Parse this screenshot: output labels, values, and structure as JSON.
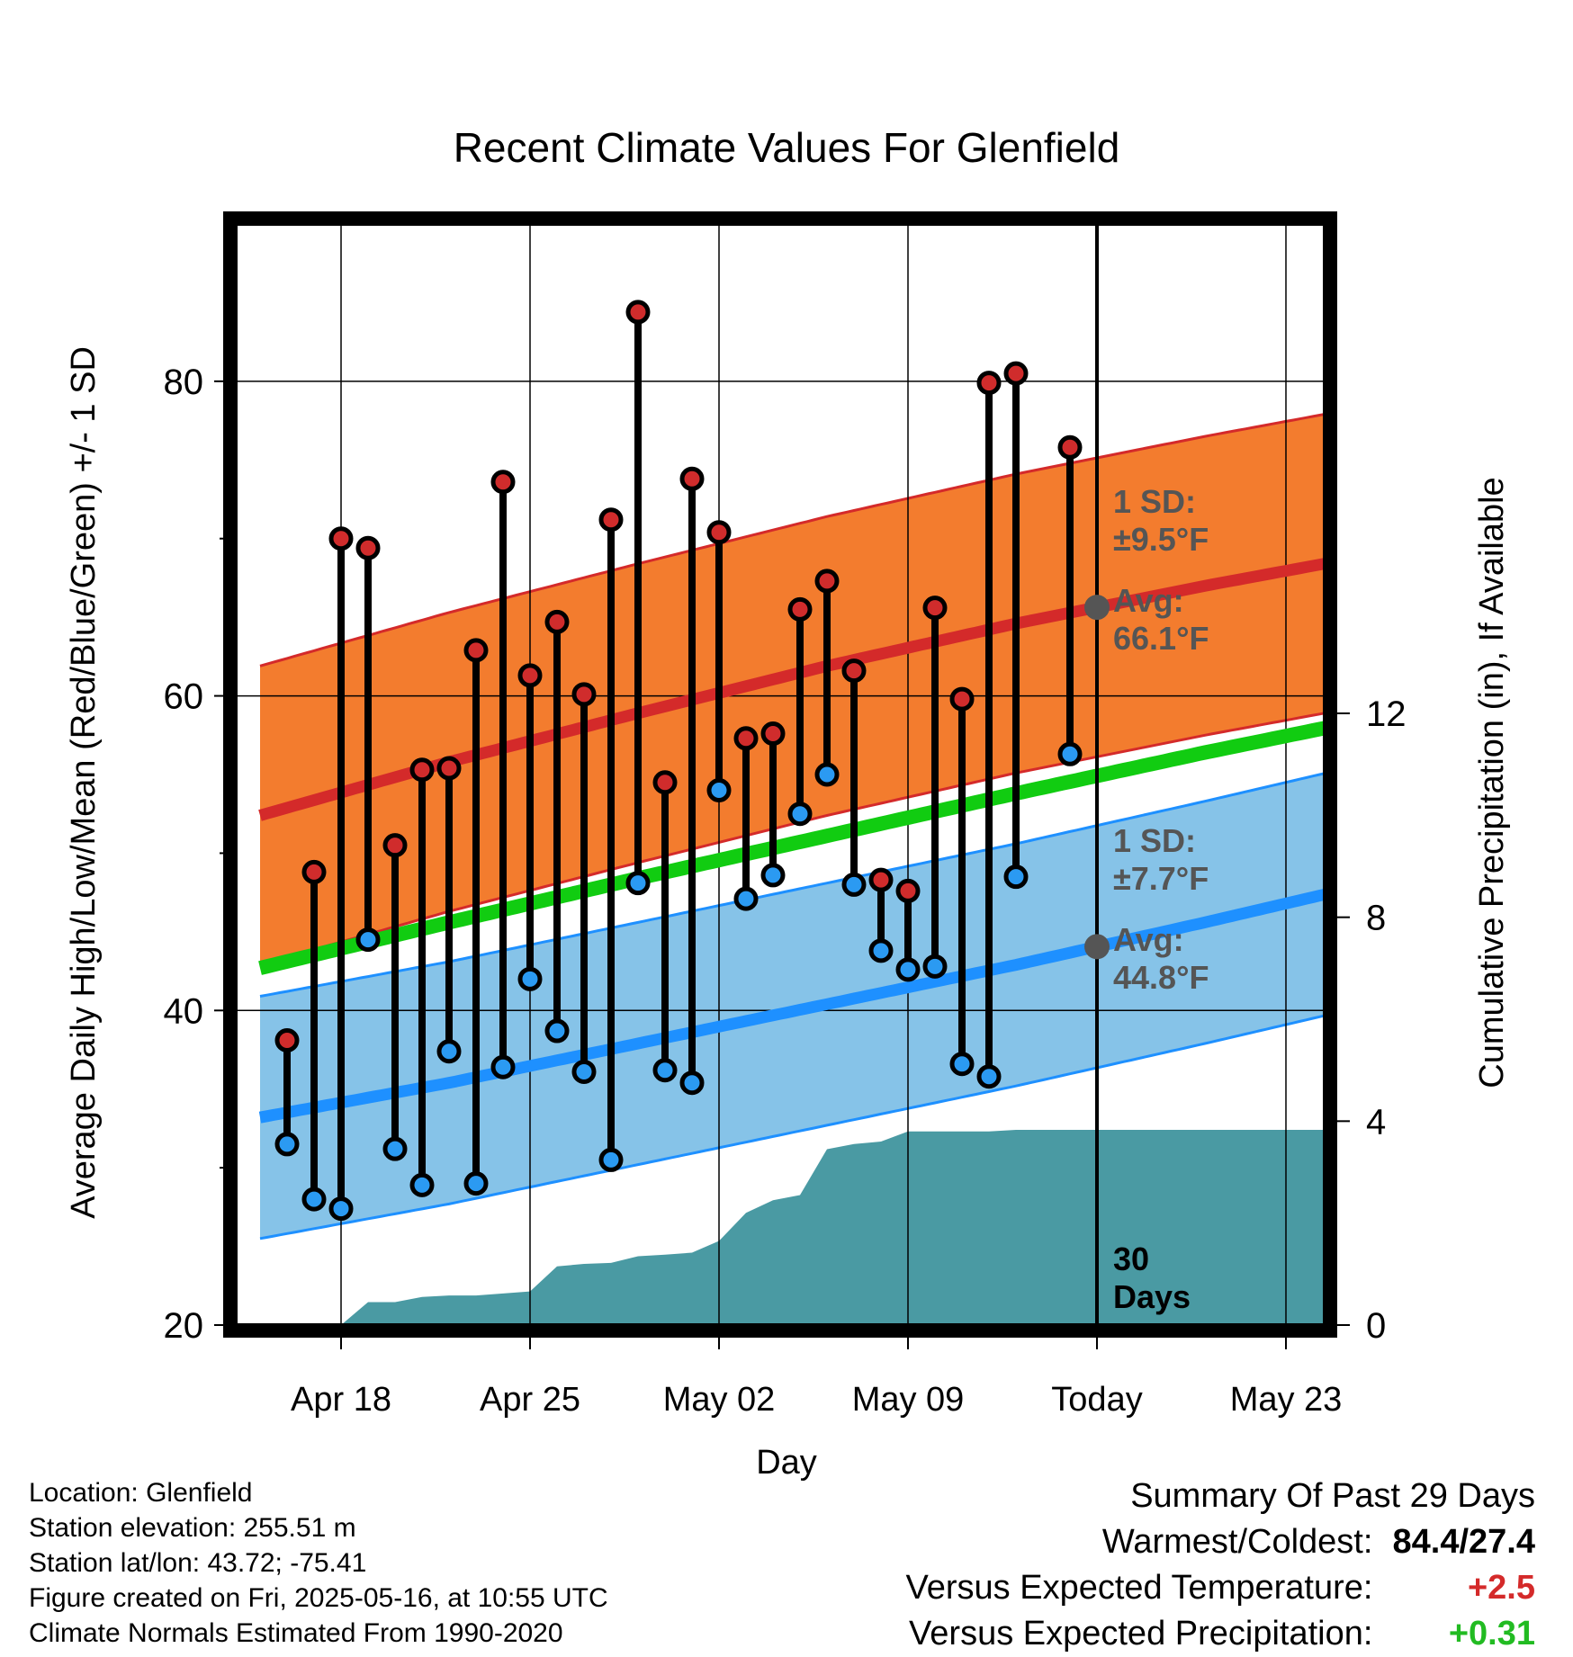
{
  "chart_data": {
    "type": "line",
    "title": "Recent Climate Values For Glenfield",
    "xlabel": "Day",
    "ylabel": "Average Daily High/Low/Mean (Red/Blue/Green) +/- 1 SD",
    "y2label": "Cumulative Precipitation (in), If Available",
    "ylim": [
      20,
      90
    ],
    "y2lim": [
      0,
      21.6
    ],
    "xlim": [
      "2025-04-15",
      "2025-05-26"
    ],
    "x_tick_dates": [
      "2025-04-18",
      "2025-04-25",
      "2025-05-02",
      "2025-05-09",
      "2025-05-16",
      "2025-05-23"
    ],
    "x_tick_labels": [
      "Apr 18",
      "Apr 25",
      "May 02",
      "May 09",
      "Today",
      "May 23"
    ],
    "y_ticks": [
      20,
      40,
      60,
      80
    ],
    "y2_ticks": [
      0,
      4,
      8,
      12
    ],
    "grid": true,
    "today": "2025-05-16",
    "normals": {
      "dates": [
        "2025-04-15",
        "2025-04-22",
        "2025-04-29",
        "2025-05-06",
        "2025-05-13",
        "2025-05-20",
        "2025-05-26"
      ],
      "high_avg": [
        52.4,
        55.8,
        58.9,
        61.9,
        64.6,
        67.0,
        68.9
      ],
      "high_sd": 9.5,
      "low_avg": [
        33.2,
        35.4,
        37.9,
        40.4,
        42.9,
        45.6,
        48.0
      ],
      "low_sd": 7.7,
      "mean_avg": [
        42.7,
        45.6,
        48.4,
        51.1,
        53.8,
        56.4,
        58.5
      ]
    },
    "series": [
      {
        "name": "High",
        "x": [
          "2025-04-16",
          "2025-04-17",
          "2025-04-18",
          "2025-04-19",
          "2025-04-20",
          "2025-04-21",
          "2025-04-22",
          "2025-04-23",
          "2025-04-24",
          "2025-04-25",
          "2025-04-26",
          "2025-04-27",
          "2025-04-28",
          "2025-04-29",
          "2025-04-30",
          "2025-05-01",
          "2025-05-02",
          "2025-05-03",
          "2025-05-04",
          "2025-05-05",
          "2025-05-06",
          "2025-05-07",
          "2025-05-08",
          "2025-05-09",
          "2025-05-10",
          "2025-05-11",
          "2025-05-12",
          "2025-05-13",
          "2025-05-15"
        ],
        "values": [
          38.1,
          48.8,
          70.0,
          69.4,
          50.5,
          55.3,
          55.4,
          62.9,
          73.6,
          61.3,
          64.7,
          60.1,
          71.2,
          84.4,
          54.5,
          73.8,
          70.4,
          57.3,
          57.6,
          65.5,
          67.3,
          61.6,
          48.3,
          47.6,
          65.6,
          59.8,
          79.9,
          80.5,
          75.8
        ]
      },
      {
        "name": "Low",
        "x": [
          "2025-04-16",
          "2025-04-17",
          "2025-04-18",
          "2025-04-19",
          "2025-04-20",
          "2025-04-21",
          "2025-04-22",
          "2025-04-23",
          "2025-04-24",
          "2025-04-25",
          "2025-04-26",
          "2025-04-27",
          "2025-04-28",
          "2025-04-29",
          "2025-04-30",
          "2025-05-01",
          "2025-05-02",
          "2025-05-03",
          "2025-05-04",
          "2025-05-05",
          "2025-05-06",
          "2025-05-07",
          "2025-05-08",
          "2025-05-09",
          "2025-05-10",
          "2025-05-11",
          "2025-05-12",
          "2025-05-13",
          "2025-05-15"
        ],
        "values": [
          31.5,
          28.0,
          27.4,
          44.5,
          31.2,
          28.9,
          37.4,
          29.0,
          36.4,
          42.0,
          38.7,
          36.1,
          30.5,
          48.1,
          36.2,
          35.4,
          54.0,
          47.1,
          48.6,
          52.5,
          55.0,
          48.0,
          43.8,
          42.6,
          42.8,
          36.6,
          35.8,
          48.5,
          56.3
        ]
      },
      {
        "name": "Precipitation",
        "x": [
          "2025-04-15",
          "2025-04-18",
          "2025-04-19",
          "2025-04-20",
          "2025-04-21",
          "2025-04-22",
          "2025-04-23",
          "2025-04-24",
          "2025-04-25",
          "2025-04-26",
          "2025-04-27",
          "2025-04-28",
          "2025-04-29",
          "2025-04-30",
          "2025-05-01",
          "2025-05-02",
          "2025-05-03",
          "2025-05-04",
          "2025-05-05",
          "2025-05-06",
          "2025-05-07",
          "2025-05-08",
          "2025-05-09",
          "2025-05-12",
          "2025-05-13",
          "2025-05-14",
          "2025-05-16",
          "2025-05-26"
        ],
        "values": [
          0,
          0,
          0.45,
          0.45,
          0.55,
          0.58,
          0.58,
          0.62,
          0.66,
          1.15,
          1.2,
          1.22,
          1.35,
          1.38,
          1.42,
          1.65,
          2.2,
          2.45,
          2.55,
          3.45,
          3.55,
          3.6,
          3.8,
          3.8,
          3.83,
          3.83,
          3.83,
          3.83
        ]
      }
    ],
    "annotations": {
      "high_sd_label_1": "1 SD:",
      "high_sd_label_2": "±9.5°F",
      "high_avg_label_1": "Avg:",
      "high_avg_label_2": "66.1°F",
      "low_sd_label_1": "1 SD:",
      "low_sd_label_2": "±7.7°F",
      "low_avg_label_1": "Avg:",
      "low_avg_label_2": "44.8°F",
      "days_label_1": "30",
      "days_label_2": "Days"
    },
    "colors": {
      "high_band": "#f37c2e",
      "high_line": "#d42a2a",
      "low_band": "#86c3e8",
      "low_line": "#1e90ff",
      "mean_line": "#11cc11",
      "precip": "#4a9aa3",
      "high_dot": "#d02c2c",
      "low_dot": "#2b9af2",
      "annotation": "#555555"
    }
  },
  "footer": {
    "location": "Location: Glenfield",
    "elevation": "Station elevation: 255.51 m",
    "latlon": "Station lat/lon: 43.72; -75.41",
    "created": "Figure created on Fri, 2025-05-16, at 10:55 UTC",
    "normals": "Climate Normals Estimated From 1990-2020"
  },
  "summary": {
    "title": "Summary Of Past 29 Days",
    "warmest_coldest_label": "Warmest/Coldest:",
    "warmest_coldest_value": "84.4/27.4",
    "temp_label": "Versus Expected Temperature:",
    "temp_value": "+2.5",
    "temp_color": "#d42a2a",
    "precip_label": "Versus Expected Precipitation:",
    "precip_value": "+0.31",
    "precip_color": "#22bb22"
  }
}
